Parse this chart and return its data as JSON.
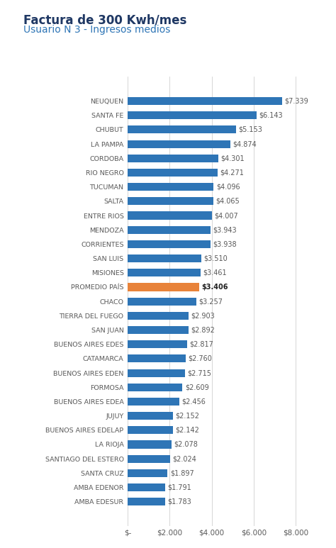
{
  "title1": "Factura de 300 Kwh/mes",
  "title2": "Usuario N 3 - Ingresos medios",
  "categories": [
    "AMBA EDESUR",
    "AMBA EDENOR",
    "SANTA CRUZ",
    "SANTIAGO DEL ESTERO",
    "LA RIOJA",
    "BUENOS AIRES EDELAP",
    "JUJUY",
    "BUENOS AIRES EDEA",
    "FORMOSA",
    "BUENOS AIRES EDEN",
    "CATAMARCA",
    "BUENOS AIRES EDES",
    "SAN JUAN",
    "TIERRA DEL FUEGO",
    "CHACO",
    "PROMEDIO PAÍS",
    "MISIONES",
    "SAN LUIS",
    "CORRIENTES",
    "MENDOZA",
    "ENTRE RIOS",
    "SALTA",
    "TUCUMAN",
    "RIO NEGRO",
    "CORDOBA",
    "LA PAMPA",
    "CHUBUT",
    "SANTA FE",
    "NEUQUEN"
  ],
  "values": [
    1783,
    1791,
    1897,
    2024,
    2078,
    2142,
    2152,
    2456,
    2609,
    2715,
    2760,
    2817,
    2892,
    2903,
    3257,
    3406,
    3461,
    3510,
    3938,
    3943,
    4007,
    4065,
    4096,
    4271,
    4301,
    4874,
    5153,
    6143,
    7339
  ],
  "value_labels": [
    "$1.783",
    "$1.791",
    "$1.897",
    "$2.024",
    "$2.078",
    "$2.142",
    "$2.152",
    "$2.456",
    "$2.609",
    "$2.715",
    "$2.760",
    "$2.817",
    "$2.892",
    "$2.903",
    "$3.257",
    "$3.406",
    "$3.461",
    "$3.510",
    "$3.938",
    "$3.943",
    "$4.007",
    "$4.065",
    "$4.096",
    "$4.271",
    "$4.301",
    "$4.874",
    "$5.153",
    "$6.143",
    "$7.339"
  ],
  "bar_colors": [
    "#2E75B6",
    "#2E75B6",
    "#2E75B6",
    "#2E75B6",
    "#2E75B6",
    "#2E75B6",
    "#2E75B6",
    "#2E75B6",
    "#2E75B6",
    "#2E75B6",
    "#2E75B6",
    "#2E75B6",
    "#2E75B6",
    "#2E75B6",
    "#2E75B6",
    "#E8833A",
    "#2E75B6",
    "#2E75B6",
    "#2E75B6",
    "#2E75B6",
    "#2E75B6",
    "#2E75B6",
    "#2E75B6",
    "#2E75B6",
    "#2E75B6",
    "#2E75B6",
    "#2E75B6",
    "#2E75B6",
    "#2E75B6"
  ],
  "highlight_index": 15,
  "xlim": [
    0,
    8800
  ],
  "xtick_labels": [
    "$-",
    "$2.000",
    "$4.000",
    "$6.000",
    "$8.000"
  ],
  "xtick_values": [
    0,
    2000,
    4000,
    6000,
    8000
  ],
  "background_color": "#FFFFFF",
  "title1_color": "#1F3864",
  "title2_color": "#2E75B6",
  "label_color": "#595959",
  "value_color_normal": "#595959",
  "value_color_highlight": "#1F1F1F",
  "bar_height": 0.55,
  "figsize": [
    4.74,
    7.73
  ],
  "dpi": 100
}
